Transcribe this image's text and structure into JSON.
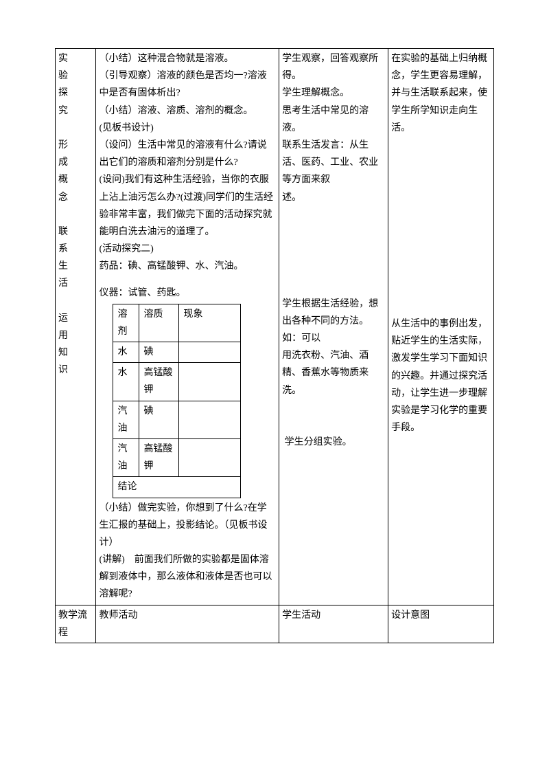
{
  "row1": {
    "sideLabel": [
      "实",
      "验",
      "探",
      "究",
      "",
      "形",
      "成",
      "概",
      "念",
      "",
      "联",
      "系",
      "生",
      "活",
      "",
      "运",
      "用",
      "知",
      "识"
    ],
    "teacher": {
      "p1": "（小结）这种混合物就是溶液。",
      "p2": "（引导观察）溶液的颜色是否均一?溶液中是否有固体析出?",
      "p3": "（小结）溶液、溶质、溶剂的概念。",
      "p4": "(见板书设计)",
      "p5": "（设问）生活中常见的溶液有什么?请说出它们的溶质和溶剂分别是什么?",
      "p6": "(设问)我们有这种生活经验，当你的衣服上沾上油污怎么办?(过渡)同学们的生活经验非常丰富，我们做完下面的活动探究就能明白洗去油污的道理了。",
      "p7": "(活动探究二)",
      "p8": "药品：碘、高锰酸钾、水、汽油。",
      "p9": "仪器：试管、药匙。",
      "p10": "（小结）做完实验，你想到了什么?在学生汇报的基础上，投影结论。（见板书设计）",
      "p11": "(讲解)　前面我们所做的实验都是固体溶解到液体中，那么液体和液体是否也可以溶解呢?"
    },
    "innerTable": {
      "h1": "溶剂",
      "h2": "溶质",
      "h3": "现象",
      "r1c1": "水",
      "r1c2": "碘",
      "r2c1": "水",
      "r2c2": "高锰酸钾",
      "r3c1": "汽油",
      "r3c2": "碘",
      "r4c1": "汽油",
      "r4c2": "高锰酸钾",
      "concl": "结论"
    },
    "student": {
      "p1": "学生观察，回答观察所得。",
      "p2": "学生理解概念。",
      "p3": "思考生活中常见的溶液。",
      "p4": "联系生活发言：从生活、医药、工业、农业等方面来叙",
      "p5": "述。",
      "p6": "学生根据生活经验，想出各种不同的方法。如：可以",
      "p7": "用洗衣粉、汽油、酒精、香蕉水等物质来洗。",
      "p8": " 学生分组实验。"
    },
    "intent": {
      "p1": "在实验的基础上归纳概念，学生更容易理解，并与生活联系起来，使学生所学知识走向生活。",
      "p2": "从生活中的事例出发，贴近学生的生活实际，激发学生学习下面知识的兴趣。并通过探究活动，让学生进一步理解实验是学习化学的重要手段。"
    }
  },
  "row2": {
    "c1": "教学流程",
    "c2": "教师活动",
    "c3": "学生活动",
    "c4": "设计意图"
  }
}
